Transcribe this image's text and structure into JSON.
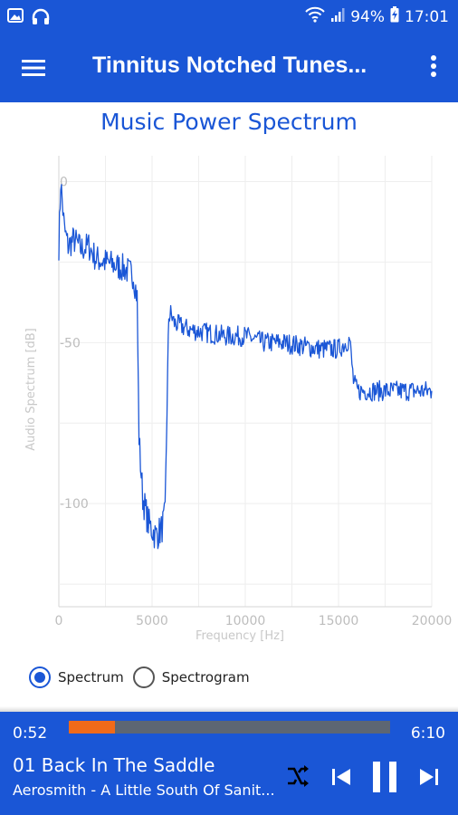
{
  "status_bar": {
    "left_icons": [
      "image-icon",
      "headphones-icon"
    ],
    "wifi_icon": "wifi-icon",
    "signal_icon": "signal-icon",
    "battery_percent": "94%",
    "battery_icon": "battery-charging-icon",
    "time": "17:01"
  },
  "app_bar": {
    "menu_icon": "hamburger-menu-icon",
    "title": "Tinnitus Notched Tunes...",
    "more_icon": "more-vertical-icon"
  },
  "chart_title": "Music Power Spectrum",
  "chart_data": {
    "type": "line",
    "title": "Music Power Spectrum",
    "xlabel": "Frequency [Hz]",
    "ylabel": "Audio Spectrum [dB]",
    "xlim": [
      0,
      20000
    ],
    "ylim": [
      -132,
      8
    ],
    "x_ticks": [
      "0",
      "5000",
      "10000",
      "15000",
      "20000"
    ],
    "y_ticks": [
      "0",
      "-50",
      "-100"
    ],
    "grid": true,
    "series": [
      {
        "color": "#1a56d6",
        "x": [
          0,
          100,
          300,
          500,
          800,
          1200,
          1600,
          2000,
          2500,
          3000,
          3500,
          4000,
          4200,
          4300,
          4500,
          4800,
          5200,
          5500,
          5700,
          5800,
          5900,
          6000,
          6200,
          7000,
          8000,
          9000,
          10000,
          11000,
          12000,
          13000,
          14000,
          15000,
          15600,
          15800,
          16000,
          17000,
          18000,
          19000,
          20000
        ],
        "y": [
          -20,
          0,
          -15,
          -20,
          -18,
          -21,
          -20,
          -24,
          -25,
          -26,
          -27,
          -29,
          -36,
          -80,
          -98,
          -106,
          -110,
          -108,
          -104,
          -70,
          -42,
          -41,
          -44,
          -46,
          -47,
          -48,
          -48,
          -50,
          -50,
          -51,
          -52,
          -52,
          -49,
          -62,
          -65,
          -65,
          -65,
          -65,
          -65
        ]
      }
    ]
  },
  "view_mode": {
    "options": [
      "Spectrum",
      "Spectrogram"
    ],
    "selected": "Spectrum"
  },
  "player": {
    "current_time": "0:52",
    "total_time": "6:10",
    "progress": 0.145,
    "progress_color": "#f06a1a",
    "song_title": "01 Back In The Saddle",
    "artist_album": "Aerosmith - A Little South Of Sanit...",
    "shuffle_icon": "shuffle-icon",
    "prev_icon": "skip-previous-icon",
    "pause_icon": "pause-icon",
    "next_icon": "skip-next-icon"
  },
  "colors": {
    "primary": "#1a56d6",
    "accent": "#f06a1a",
    "track": "#5d6673"
  }
}
